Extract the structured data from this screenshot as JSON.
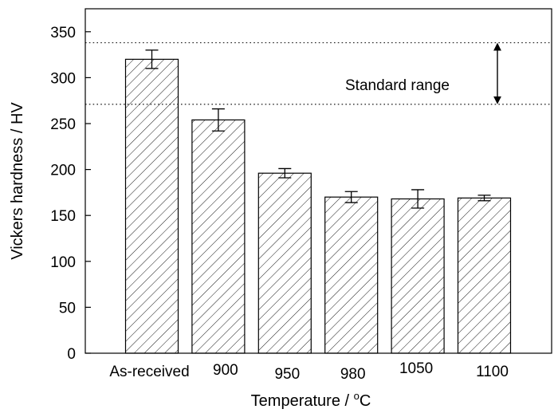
{
  "chart_data": {
    "type": "bar",
    "categories": [
      "As-received",
      "900",
      "950",
      "980",
      "1050",
      "1100"
    ],
    "values": [
      320,
      254,
      196,
      170,
      168,
      169
    ],
    "errors": [
      10,
      12,
      5,
      6,
      10,
      3
    ],
    "xlabel": "Temperature / ",
    "xlabel_unit": "C",
    "xlabel_superscript": "o",
    "ylabel": "Vickers hardness / HV",
    "ylim": [
      0,
      375
    ],
    "yticks": [
      0,
      50,
      100,
      150,
      200,
      250,
      300,
      350
    ],
    "reference_lines": [
      {
        "y": 271,
        "style": "dotted"
      },
      {
        "y": 338,
        "style": "dotted"
      }
    ],
    "annotation": "Standard range",
    "bar_fill": "hatched",
    "grid": false,
    "legend": "none",
    "colors": {
      "bar_edge": "#000000",
      "hatch": "#000000",
      "background": "#ffffff"
    }
  }
}
